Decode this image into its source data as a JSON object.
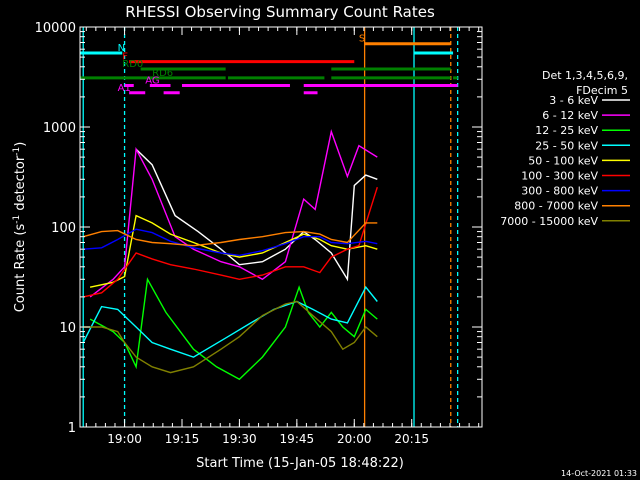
{
  "chart_data": {
    "type": "line",
    "title": "RHESSI Observing Summary Count Rates",
    "xlabel": "Start Time (15-Jan-05 18:48:22)",
    "ylabel_main": "Count Rate (s",
    "ylabel_sup": "-1",
    "ylabel_mid": " detector",
    "ylabel_end": ")",
    "yscale": "log",
    "ylim": [
      1,
      10000
    ],
    "xlim": [
      18.806,
      20.556
    ],
    "x_ticks": [
      {
        "value": 19.0,
        "label": "19:00"
      },
      {
        "value": 19.25,
        "label": "19:15"
      },
      {
        "value": 19.5,
        "label": "19:30"
      },
      {
        "value": 19.75,
        "label": "19:45"
      },
      {
        "value": 20.0,
        "label": "20:00"
      },
      {
        "value": 20.25,
        "label": "20:15"
      }
    ],
    "y_ticks": [
      {
        "value": 1,
        "label": "1"
      },
      {
        "value": 10,
        "label": "10"
      },
      {
        "value": 100,
        "label": "100"
      },
      {
        "value": 1000,
        "label": "1000"
      },
      {
        "value": 10000,
        "label": "10000"
      }
    ],
    "legend": {
      "header": [
        "Det 1,3,4,5,6,9,",
        "FDecim 5"
      ],
      "position": "right"
    },
    "series": [
      {
        "name": "3 - 6 keV",
        "color": "#ffffff",
        "points": [
          [
            19.05,
            600
          ],
          [
            19.12,
            420
          ],
          [
            19.22,
            130
          ],
          [
            19.32,
            90
          ],
          [
            19.42,
            60
          ],
          [
            19.5,
            42
          ],
          [
            19.6,
            45
          ],
          [
            19.7,
            60
          ],
          [
            19.78,
            90
          ],
          [
            19.83,
            75
          ],
          [
            19.9,
            55
          ],
          [
            19.97,
            30
          ],
          [
            20.0,
            260
          ],
          [
            20.05,
            330
          ],
          [
            20.1,
            300
          ]
        ]
      },
      {
        "name": "6 - 12 keV",
        "color": "#ff00ff",
        "points": [
          [
            18.85,
            20
          ],
          [
            18.95,
            30
          ],
          [
            19.0,
            40
          ],
          [
            19.05,
            600
          ],
          [
            19.12,
            300
          ],
          [
            19.22,
            80
          ],
          [
            19.3,
            60
          ],
          [
            19.42,
            45
          ],
          [
            19.5,
            40
          ],
          [
            19.6,
            30
          ],
          [
            19.7,
            45
          ],
          [
            19.78,
            190
          ],
          [
            19.83,
            150
          ],
          [
            19.9,
            900
          ],
          [
            19.97,
            320
          ],
          [
            20.02,
            650
          ],
          [
            20.1,
            500
          ]
        ]
      },
      {
        "name": "12 - 25 keV",
        "color": "#00ff00",
        "points": [
          [
            18.85,
            12
          ],
          [
            18.95,
            9
          ],
          [
            19.0,
            7
          ],
          [
            19.05,
            4
          ],
          [
            19.1,
            30
          ],
          [
            19.18,
            14
          ],
          [
            19.3,
            6
          ],
          [
            19.4,
            4
          ],
          [
            19.5,
            3
          ],
          [
            19.6,
            5
          ],
          [
            19.7,
            10
          ],
          [
            19.76,
            25
          ],
          [
            19.8,
            14
          ],
          [
            19.85,
            10
          ],
          [
            19.9,
            14
          ],
          [
            19.95,
            10
          ],
          [
            20.0,
            8
          ],
          [
            20.05,
            15
          ],
          [
            20.1,
            12
          ]
        ]
      },
      {
        "name": "25 - 50 keV",
        "color": "#00ffff",
        "points": [
          [
            18.82,
            7
          ],
          [
            18.9,
            16
          ],
          [
            18.97,
            15
          ],
          [
            19.05,
            10
          ],
          [
            19.12,
            7
          ],
          [
            19.2,
            6
          ],
          [
            19.3,
            5
          ],
          [
            19.45,
            8
          ],
          [
            19.55,
            11
          ],
          [
            19.65,
            15
          ],
          [
            19.75,
            18
          ],
          [
            19.82,
            15
          ],
          [
            19.9,
            12
          ],
          [
            19.97,
            11
          ],
          [
            20.05,
            25
          ],
          [
            20.1,
            18
          ]
        ]
      },
      {
        "name": "50 - 100 keV",
        "color": "#ffff00",
        "points": [
          [
            18.85,
            25
          ],
          [
            18.95,
            28
          ],
          [
            19.0,
            32
          ],
          [
            19.05,
            130
          ],
          [
            19.12,
            110
          ],
          [
            19.2,
            85
          ],
          [
            19.3,
            70
          ],
          [
            19.42,
            55
          ],
          [
            19.5,
            50
          ],
          [
            19.6,
            55
          ],
          [
            19.7,
            70
          ],
          [
            19.78,
            85
          ],
          [
            19.85,
            75
          ],
          [
            19.9,
            65
          ],
          [
            19.97,
            60
          ],
          [
            20.05,
            65
          ],
          [
            20.1,
            60
          ]
        ]
      },
      {
        "name": "100 - 300 keV",
        "color": "#ff0000",
        "points": [
          [
            18.82,
            20
          ],
          [
            18.9,
            22
          ],
          [
            18.97,
            30
          ],
          [
            19.05,
            55
          ],
          [
            19.12,
            48
          ],
          [
            19.2,
            42
          ],
          [
            19.3,
            38
          ],
          [
            19.42,
            33
          ],
          [
            19.5,
            30
          ],
          [
            19.6,
            33
          ],
          [
            19.7,
            40
          ],
          [
            19.78,
            40
          ],
          [
            19.85,
            35
          ],
          [
            19.9,
            50
          ],
          [
            19.97,
            60
          ],
          [
            20.02,
            65
          ],
          [
            20.1,
            250
          ]
        ]
      },
      {
        "name": "300 - 800 keV",
        "color": "#0000ff",
        "points": [
          [
            18.82,
            60
          ],
          [
            18.9,
            62
          ],
          [
            18.97,
            75
          ],
          [
            19.05,
            95
          ],
          [
            19.12,
            88
          ],
          [
            19.2,
            72
          ],
          [
            19.3,
            62
          ],
          [
            19.42,
            55
          ],
          [
            19.5,
            52
          ],
          [
            19.6,
            58
          ],
          [
            19.7,
            68
          ],
          [
            19.78,
            80
          ],
          [
            19.85,
            80
          ],
          [
            19.9,
            70
          ],
          [
            19.97,
            68
          ],
          [
            20.05,
            72
          ],
          [
            20.1,
            68
          ]
        ]
      },
      {
        "name": "800 - 7000 keV",
        "color": "#ff8000",
        "points": [
          [
            18.82,
            80
          ],
          [
            18.9,
            90
          ],
          [
            18.97,
            92
          ],
          [
            19.05,
            75
          ],
          [
            19.12,
            70
          ],
          [
            19.2,
            68
          ],
          [
            19.3,
            65
          ],
          [
            19.42,
            70
          ],
          [
            19.5,
            75
          ],
          [
            19.6,
            80
          ],
          [
            19.7,
            88
          ],
          [
            19.78,
            90
          ],
          [
            19.85,
            85
          ],
          [
            19.9,
            75
          ],
          [
            19.97,
            70
          ],
          [
            20.05,
            110
          ],
          [
            20.1,
            110
          ]
        ]
      },
      {
        "name": "7000 - 15000 keV",
        "color": "#808000",
        "points": [
          [
            18.82,
            10
          ],
          [
            18.9,
            10
          ],
          [
            18.97,
            9
          ],
          [
            19.0,
            7
          ],
          [
            19.05,
            5
          ],
          [
            19.12,
            4
          ],
          [
            19.2,
            3.5
          ],
          [
            19.3,
            4
          ],
          [
            19.42,
            6
          ],
          [
            19.5,
            8
          ],
          [
            19.6,
            13
          ],
          [
            19.7,
            17
          ],
          [
            19.75,
            18
          ],
          [
            19.82,
            13
          ],
          [
            19.9,
            9
          ],
          [
            19.95,
            6
          ],
          [
            20.0,
            7
          ],
          [
            20.05,
            10
          ],
          [
            20.1,
            8
          ]
        ]
      }
    ],
    "flag_bars": [
      {
        "label": "N",
        "color": "#00ffff",
        "y": 5500,
        "segments": [
          [
            18.806,
            18.99
          ],
          [
            20.26,
            20.43
          ]
        ],
        "label_x": 18.97
      },
      {
        "label": "S",
        "color": "#ff8000",
        "y": 6800,
        "segments": [
          [
            20.045,
            20.42
          ]
        ],
        "label_x": 20.02
      },
      {
        "label": "F",
        "color": "#ff0000",
        "y": 4500,
        "segments": [
          [
            19.02,
            20.0
          ]
        ],
        "label_x": 18.99
      },
      {
        "label": "RD0",
        "color": "#008000",
        "y": 3800,
        "segments": [
          [
            19.07,
            19.44
          ],
          [
            19.9,
            20.42
          ]
        ],
        "label_x": 18.99
      },
      {
        "label": "RD6",
        "color": "#008000",
        "y": 3100,
        "segments": [
          [
            18.806,
            19.44
          ],
          [
            19.45,
            19.87
          ],
          [
            19.9,
            20.42
          ],
          [
            20.43,
            20.45
          ]
        ],
        "label_x": 19.12
      },
      {
        "label": "AG",
        "color": "#ff00ff",
        "y": 2600,
        "segments": [
          [
            19.0,
            19.04
          ],
          [
            19.11,
            19.2
          ],
          [
            19.25,
            19.72
          ],
          [
            19.78,
            20.45
          ]
        ],
        "label_x": 19.09
      },
      {
        "label": "A1",
        "color": "#ff00ff",
        "y": 2200,
        "segments": [
          [
            19.02,
            19.09
          ],
          [
            19.17,
            19.24
          ],
          [
            19.78,
            19.84
          ]
        ],
        "label_x": 18.97
      }
    ],
    "vertical_lines": [
      {
        "x": 18.82,
        "color": "#00ffff",
        "style": "solid"
      },
      {
        "x": 19.0,
        "color": "#00ffff",
        "style": "dashed"
      },
      {
        "x": 20.045,
        "color": "#ff8000",
        "style": "solid"
      },
      {
        "x": 20.26,
        "color": "#00ffff",
        "style": "solid"
      },
      {
        "x": 20.42,
        "color": "#ff8000",
        "style": "dashed"
      },
      {
        "x": 20.45,
        "color": "#00ffff",
        "style": "dashed"
      }
    ],
    "footer_timestamp": "14-Oct-2021 01:33"
  }
}
